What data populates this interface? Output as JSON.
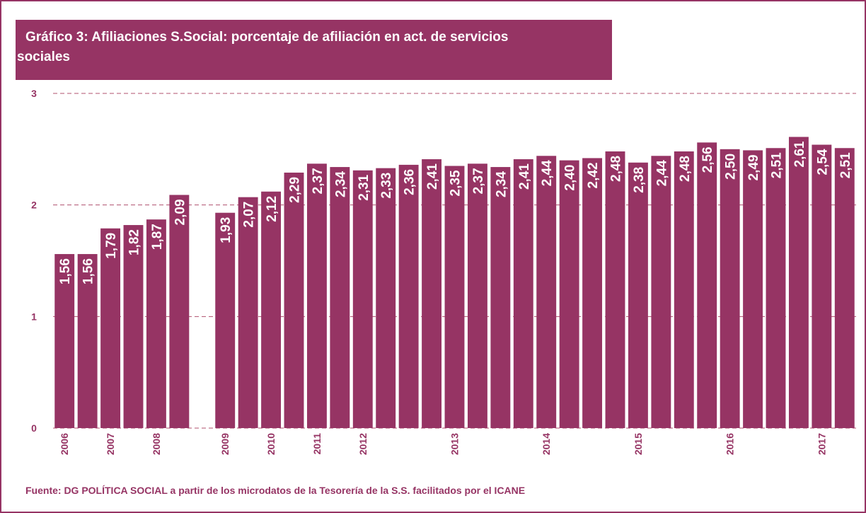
{
  "chart_data": {
    "type": "bar",
    "title": "Gráfico 3: Afiliaciones S.Social: porcentaje de afiliación en act. de servicios sociales",
    "categories": [
      "2006",
      null,
      "2007",
      null,
      "2008",
      null,
      null,
      "2009",
      null,
      "2010",
      null,
      "2011",
      null,
      "2012",
      null,
      null,
      null,
      "2013",
      null,
      null,
      null,
      "2014",
      null,
      null,
      null,
      "2015",
      null,
      null,
      null,
      "2016",
      null,
      null,
      null,
      "2017",
      null
    ],
    "values": [
      1.56,
      1.56,
      1.79,
      1.82,
      1.87,
      2.09,
      null,
      1.93,
      2.07,
      2.12,
      2.29,
      2.37,
      2.34,
      2.31,
      2.33,
      2.36,
      2.41,
      2.35,
      2.37,
      2.34,
      2.41,
      2.44,
      2.4,
      2.42,
      2.48,
      2.38,
      2.44,
      2.48,
      2.56,
      2.5,
      2.49,
      2.51,
      2.61,
      2.54,
      2.51
    ],
    "value_labels": [
      "1,56",
      "1,56",
      "1,79",
      "1,82",
      "1,87",
      "2,09",
      null,
      "1,93",
      "2,07",
      "2,12",
      "2,29",
      "2,37",
      "2,34",
      "2,31",
      "2,33",
      "2,36",
      "2,41",
      "2,35",
      "2,37",
      "2,34",
      "2,41",
      "2,44",
      "2,40",
      "2,42",
      "2,48",
      "2,38",
      "2,44",
      "2,48",
      "2,56",
      "2,50",
      "2,49",
      "2,51",
      "2,61",
      "2,54",
      "2,51"
    ],
    "color": "#963464",
    "ylim": [
      0,
      3
    ],
    "yticks": [
      0,
      1,
      2,
      3
    ],
    "grid": true,
    "source": "Fuente: DG POLÍTICA SOCIAL a partir de los microdatos de la Tesorería de la S.S. facilitados por el ICANE"
  }
}
